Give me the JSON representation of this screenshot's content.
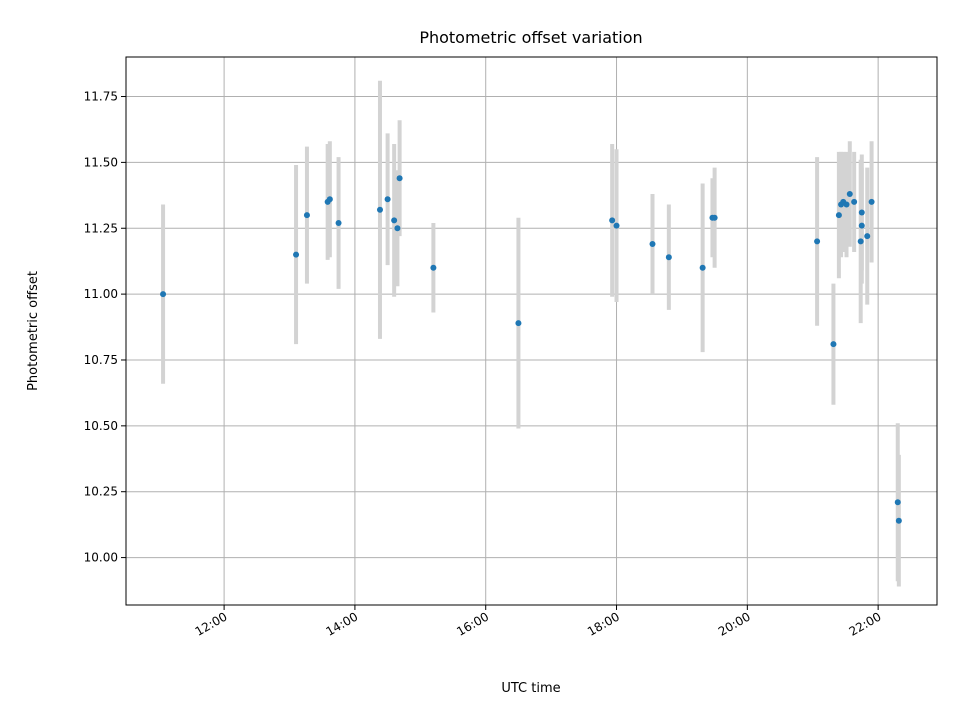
{
  "chart_data": {
    "type": "scatter",
    "title": "Photometric offset variation",
    "xlabel": "UTC time",
    "ylabel": "Photometric offset",
    "xlim": [
      "10:30",
      "22:54"
    ],
    "ylim": [
      9.82,
      11.9
    ],
    "x_ticks": [
      "12:00",
      "14:00",
      "16:00",
      "18:00",
      "20:00",
      "22:00"
    ],
    "y_ticks": [
      10.0,
      10.25,
      10.5,
      10.75,
      11.0,
      11.25,
      11.5,
      11.75
    ],
    "y_tick_labels": [
      "10.00",
      "10.25",
      "10.50",
      "10.75",
      "11.00",
      "11.25",
      "11.50",
      "11.75"
    ],
    "grid": true,
    "colors": {
      "point": "#1f77b4",
      "errorbar": "#d3d3d3"
    },
    "points": [
      {
        "x": "11:04",
        "y": 11.0,
        "err": 0.34
      },
      {
        "x": "13:06",
        "y": 11.15,
        "err": 0.34
      },
      {
        "x": "13:16",
        "y": 11.3,
        "err": 0.26
      },
      {
        "x": "13:35",
        "y": 11.35,
        "err": 0.22
      },
      {
        "x": "13:37",
        "y": 11.36,
        "err": 0.22
      },
      {
        "x": "13:45",
        "y": 11.27,
        "err": 0.25
      },
      {
        "x": "14:23",
        "y": 11.32,
        "err": 0.49
      },
      {
        "x": "14:30",
        "y": 11.36,
        "err": 0.25
      },
      {
        "x": "14:36",
        "y": 11.28,
        "err": 0.29
      },
      {
        "x": "14:39",
        "y": 11.25,
        "err": 0.22
      },
      {
        "x": "14:41",
        "y": 11.44,
        "err": 0.22
      },
      {
        "x": "15:12",
        "y": 11.1,
        "err": 0.17
      },
      {
        "x": "16:30",
        "y": 10.89,
        "err": 0.4
      },
      {
        "x": "17:56",
        "y": 11.28,
        "err": 0.29
      },
      {
        "x": "18:00",
        "y": 11.26,
        "err": 0.29
      },
      {
        "x": "18:33",
        "y": 11.19,
        "err": 0.19
      },
      {
        "x": "18:48",
        "y": 11.14,
        "err": 0.2
      },
      {
        "x": "19:19",
        "y": 11.1,
        "err": 0.32
      },
      {
        "x": "19:28",
        "y": 11.29,
        "err": 0.15
      },
      {
        "x": "19:30",
        "y": 11.29,
        "err": 0.19
      },
      {
        "x": "21:04",
        "y": 11.2,
        "err": 0.32
      },
      {
        "x": "21:19",
        "y": 10.81,
        "err": 0.23
      },
      {
        "x": "21:24",
        "y": 11.3,
        "err": 0.24
      },
      {
        "x": "21:26",
        "y": 11.34,
        "err": 0.2
      },
      {
        "x": "21:28",
        "y": 11.35,
        "err": 0.19
      },
      {
        "x": "21:31",
        "y": 11.34,
        "err": 0.2
      },
      {
        "x": "21:34",
        "y": 11.38,
        "err": 0.2
      },
      {
        "x": "21:38",
        "y": 11.35,
        "err": 0.19
      },
      {
        "x": "21:44",
        "y": 11.2,
        "err": 0.31
      },
      {
        "x": "21:45",
        "y": 11.31,
        "err": 0.22
      },
      {
        "x": "21:45",
        "y": 11.26,
        "err": 0.22
      },
      {
        "x": "21:50",
        "y": 11.22,
        "err": 0.26
      },
      {
        "x": "21:54",
        "y": 11.35,
        "err": 0.23
      },
      {
        "x": "22:18",
        "y": 10.21,
        "err": 0.3
      },
      {
        "x": "22:19",
        "y": 10.14,
        "err": 0.25
      }
    ]
  }
}
